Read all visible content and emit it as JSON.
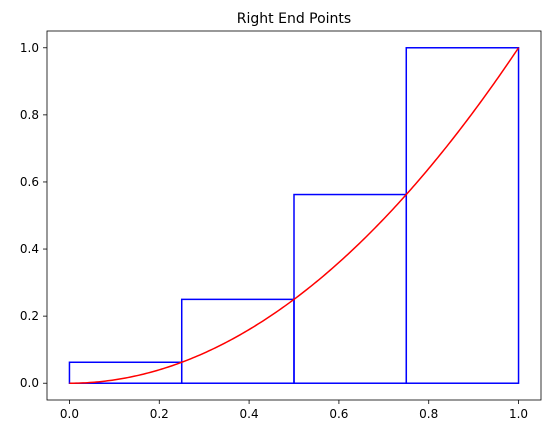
{
  "chart_data": {
    "type": "line",
    "title": "Right End Points",
    "xlabel": "",
    "ylabel": "",
    "xlim": [
      -0.05,
      1.05
    ],
    "ylim": [
      -0.05,
      1.05
    ],
    "xticks": [
      "0.0",
      "0.2",
      "0.4",
      "0.6",
      "0.8",
      "1.0"
    ],
    "yticks": [
      "0.0",
      "0.2",
      "0.4",
      "0.6",
      "0.8",
      "1.0"
    ],
    "grid": false,
    "legend": "none",
    "series": [
      {
        "kind": "curve",
        "function": "y = x^2",
        "x_range": [
          0,
          1
        ],
        "color": "#ff0000"
      }
    ],
    "rectangles": [
      {
        "x0": 0.0,
        "x1": 0.25,
        "height": 0.0625
      },
      {
        "x0": 0.25,
        "x1": 0.5,
        "height": 0.25
      },
      {
        "x0": 0.5,
        "x1": 0.75,
        "height": 0.5625
      },
      {
        "x0": 0.75,
        "x1": 1.0,
        "height": 1.0
      }
    ],
    "rect_color": "#0000ff"
  }
}
